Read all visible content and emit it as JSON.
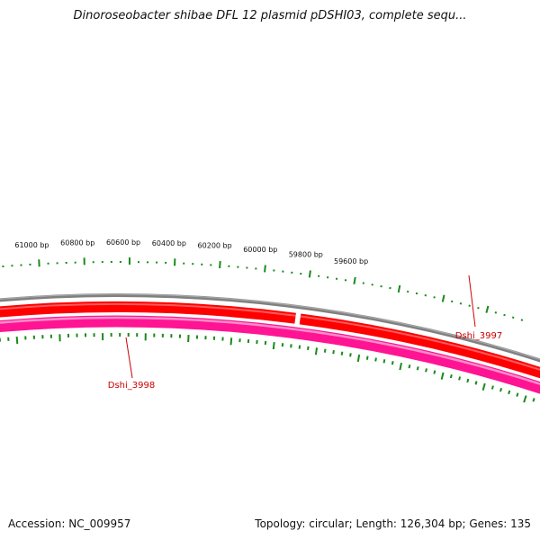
{
  "title": "Dinoroseobacter shibae DFL 12 plasmid pDSHI03, complete sequ...",
  "accession": "Accession: NC_009957",
  "summary": "Topology: circular; Length: 126,304 bp; Genes: 135",
  "colors": {
    "backbone": "#808080",
    "forward_gene": "#ff0000",
    "reverse_gene": "#ff1493",
    "tick": "#1a8a1a",
    "label": "#cc0000"
  },
  "scale_labels": [
    {
      "bp": 61000,
      "label": "61000 bp"
    },
    {
      "bp": 60800,
      "label": "60800 bp"
    },
    {
      "bp": 60600,
      "label": "60600 bp"
    },
    {
      "bp": 60400,
      "label": "60400 bp"
    },
    {
      "bp": 60200,
      "label": "60200 bp"
    },
    {
      "bp": 60000,
      "label": "60000 bp"
    },
    {
      "bp": 59800,
      "label": "59800 bp"
    },
    {
      "bp": 59600,
      "label": "59600 bp"
    }
  ],
  "genes": [
    {
      "name": "Dshi_3997",
      "strand": "+"
    },
    {
      "name": "Dshi_3998",
      "strand": "-"
    }
  ]
}
